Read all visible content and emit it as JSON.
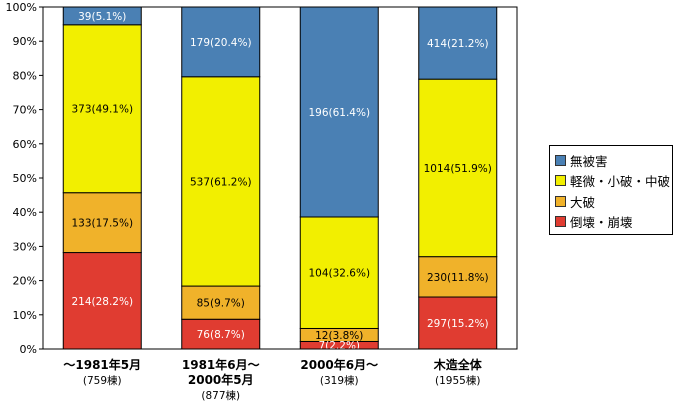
{
  "chart_data": {
    "type": "bar",
    "stacked": true,
    "percent_stacked": true,
    "ylim": [
      0,
      100
    ],
    "yticks": [
      "0%",
      "10%",
      "20%",
      "30%",
      "40%",
      "50%",
      "60%",
      "70%",
      "80%",
      "90%",
      "100%"
    ],
    "categories": [
      {
        "line1": "～1981年5月",
        "line2": "",
        "line3": "(759棟)"
      },
      {
        "line1": "1981年6月～",
        "line2": "2000年5月",
        "line3": "(877棟)"
      },
      {
        "line1": "2000年6月～",
        "line2": "",
        "line3": "(319棟)"
      },
      {
        "line1": "木造全体",
        "line2": "",
        "line3": "(1955棟)"
      }
    ],
    "series": [
      {
        "name": "倒壊・崩壊",
        "color": "#e03c31",
        "values": [
          28.2,
          8.7,
          2.2,
          15.2
        ],
        "labels": [
          "214(28.2%)",
          "76(8.7%)",
          "7(2.2%)",
          "297(15.2%)"
        ]
      },
      {
        "name": "大破",
        "color": "#f0b22a",
        "values": [
          17.5,
          9.7,
          3.8,
          11.8
        ],
        "labels": [
          "133(17.5%)",
          "85(9.7%)",
          "12(3.8%)",
          "230(11.8%)"
        ]
      },
      {
        "name": "軽微・小破・中破",
        "color": "#f2ef00",
        "values": [
          49.1,
          61.2,
          32.6,
          51.9
        ],
        "labels": [
          "373(49.1%)",
          "537(61.2%)",
          "104(32.6%)",
          "1014(51.9%)"
        ]
      },
      {
        "name": "無被害",
        "color": "#4a80b4",
        "values": [
          5.1,
          20.4,
          61.4,
          21.2
        ],
        "labels": [
          "39(5.1%)",
          "179(20.4%)",
          "196(61.4%)",
          "414(21.2%)"
        ]
      }
    ],
    "label_colors": {
      "倒壊・崩壊": "#ffffff",
      "大破": "#000000",
      "軽微・小破・中破": "#000000",
      "無被害": "#ffffff"
    },
    "legend": {
      "position": "right",
      "items": [
        {
          "name": "無被害",
          "color": "#4a80b4"
        },
        {
          "name": "軽微・小破・中破",
          "color": "#f2ef00"
        },
        {
          "name": "大破",
          "color": "#f0b22a"
        },
        {
          "name": "倒壊・崩壊",
          "color": "#e03c31"
        }
      ]
    },
    "grid": false
  }
}
